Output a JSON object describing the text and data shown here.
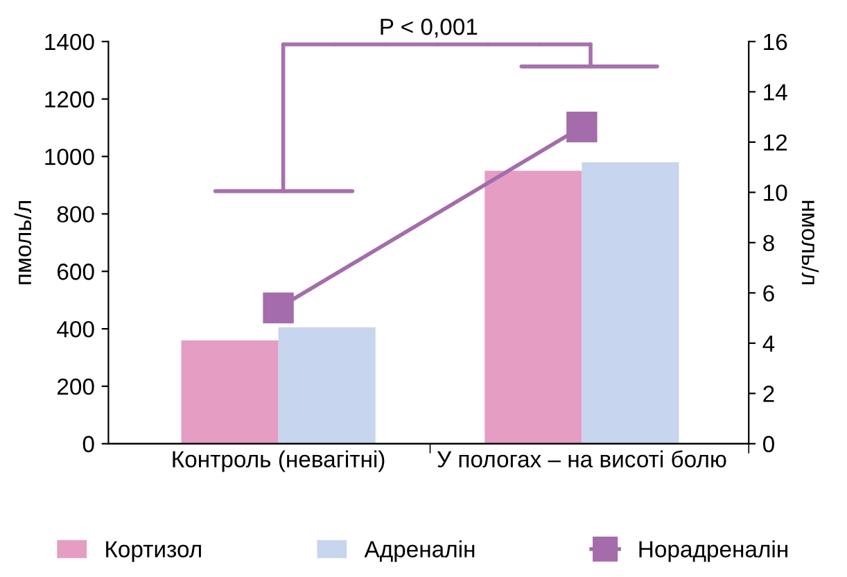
{
  "chart_data": {
    "type": "bar",
    "categories": [
      "Контроль (невагітні)",
      "У пологах – на висоті болю"
    ],
    "series": [
      {
        "name": "Кортизол",
        "color": "#e59dc3",
        "values": [
          360,
          950
        ]
      },
      {
        "name": "Адреналін",
        "color": "#c7d5ee",
        "values": [
          405,
          980
        ]
      },
      {
        "name": "Норадреналін",
        "color": "#a46cab",
        "type": "line",
        "axis": "y2",
        "marker": "square",
        "values": [
          5.4,
          12.6
        ]
      }
    ],
    "ylabel": "пмоль/л",
    "y2label": "нмоль/л",
    "ylim": [
      0,
      1400
    ],
    "yticks": [
      0,
      200,
      400,
      600,
      800,
      1000,
      1200,
      1400
    ],
    "y2lim": [
      0,
      16
    ],
    "y2ticks": [
      0,
      2,
      4,
      6,
      8,
      10,
      12,
      14,
      16
    ],
    "annotations": [
      "P < 0,001"
    ],
    "legend": "bottom",
    "grid": false
  }
}
